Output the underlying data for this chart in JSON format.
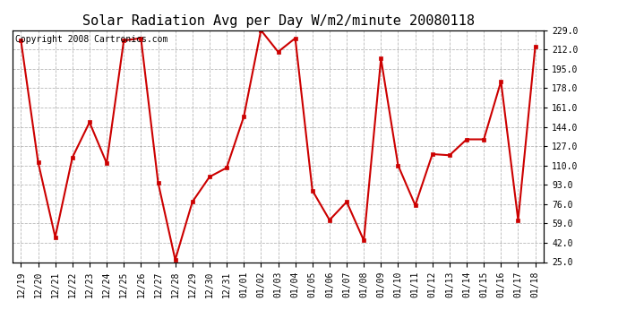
{
  "title": "Solar Radiation Avg per Day W/m2/minute 20080118",
  "copyright": "Copyright 2008 Cartronics.com",
  "labels": [
    "12/19",
    "12/20",
    "12/21",
    "12/22",
    "12/23",
    "12/24",
    "12/25",
    "12/26",
    "12/27",
    "12/28",
    "12/29",
    "12/30",
    "12/31",
    "01/01",
    "01/02",
    "01/03",
    "01/04",
    "01/05",
    "01/06",
    "01/07",
    "01/08",
    "01/09",
    "01/10",
    "01/11",
    "01/12",
    "01/13",
    "01/14",
    "01/15",
    "01/16",
    "01/17",
    "01/18"
  ],
  "values": [
    220,
    113,
    47,
    117,
    148,
    112,
    220,
    222,
    95,
    27,
    78,
    100,
    108,
    153,
    229,
    210,
    222,
    88,
    62,
    78,
    44,
    204,
    110,
    75,
    120,
    119,
    133,
    133,
    184,
    62,
    215
  ],
  "line_color": "#cc0000",
  "marker_color": "#cc0000",
  "bg_color": "#ffffff",
  "grid_color": "#999999",
  "title_fontsize": 11,
  "copyright_fontsize": 7,
  "tick_fontsize": 7,
  "ylim_min": 25.0,
  "ylim_max": 229.0,
  "yticks": [
    25.0,
    42.0,
    59.0,
    76.0,
    93.0,
    110.0,
    127.0,
    144.0,
    161.0,
    178.0,
    195.0,
    212.0,
    229.0
  ]
}
